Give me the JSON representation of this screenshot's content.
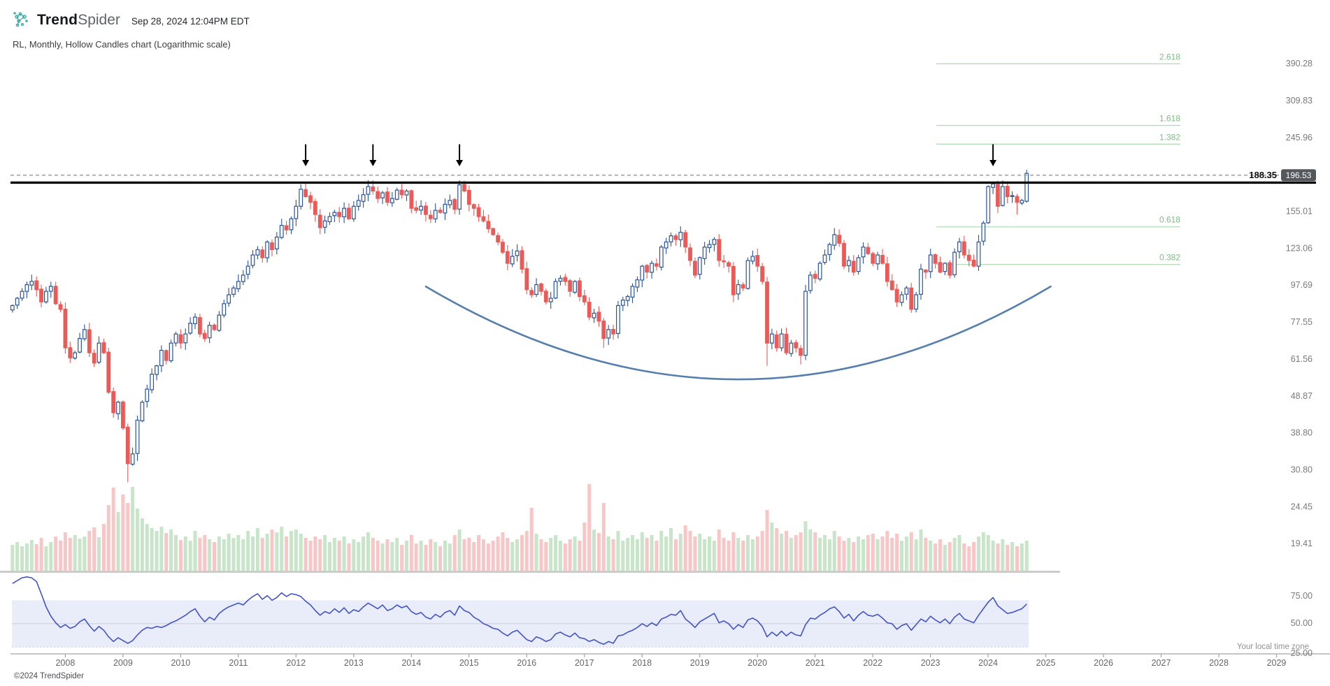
{
  "header": {
    "logo_bold": "Trend",
    "logo_light": "Spider",
    "timestamp": "Sep 28, 2024 12:04PM EDT",
    "subtitle": "RL, Monthly, Hollow Candles chart (Logarithmic scale)"
  },
  "footer": {
    "copyright": "©2024 TrendSpider",
    "timezone_note": "Your local time zone"
  },
  "colors": {
    "candle_up": "#2a549b",
    "candle_down": "#ea5a57",
    "vol_up": "#c8e4c9",
    "vol_down": "#f7c7c8",
    "fib_line": "#b5dbb7",
    "fib_text": "#7cbd81",
    "curve": "#567fae",
    "rsi_line": "#4353c8",
    "rsi_band": "#e9ecf9",
    "rsi_band_border": "#c6cce9",
    "rsi_mid": "#cfd2dc",
    "dashed_line": "#a9a9a9",
    "black_line": "#0a0a0a",
    "badge_bg": "#54575b",
    "badge_text": "#ffffff",
    "axis_text": "#7a7a7a",
    "year_text": "#666666",
    "vol_baseline": "#cccccc",
    "axis_line": "#a3a3a3",
    "price_label_text": "#111111"
  },
  "chart_data": {
    "type": "candlestick",
    "symbol": "RL",
    "timeframe": "Monthly",
    "style": "Hollow Candles",
    "scale": "Logarithmic",
    "start_month": "2007-02",
    "first_open": 84,
    "closes": [
      86,
      90,
      94,
      98,
      100,
      95,
      88,
      94,
      97,
      87,
      84,
      66,
      62,
      64,
      70,
      74,
      64,
      60,
      68,
      64,
      50,
      44,
      47,
      40,
      32,
      34,
      42,
      47,
      51,
      56,
      59,
      65,
      61,
      68,
      72,
      68,
      72,
      77,
      80,
      72,
      70,
      76,
      74,
      81,
      87,
      92,
      96,
      100,
      104,
      110,
      118,
      122,
      116,
      128,
      122,
      132,
      142,
      138,
      148,
      160,
      178,
      170,
      164,
      152,
      140,
      146,
      150,
      154,
      150,
      158,
      148,
      160,
      166,
      172,
      181,
      176,
      168,
      174,
      164,
      168,
      177,
      172,
      176,
      158,
      156,
      160,
      152,
      148,
      156,
      154,
      162,
      166,
      157,
      183,
      176,
      162,
      158,
      150,
      146,
      139,
      134,
      128,
      120,
      112,
      117,
      121,
      108,
      95,
      92,
      98,
      94,
      88,
      90,
      100,
      102,
      100,
      94,
      100,
      91,
      88,
      80,
      82,
      78,
      70,
      74,
      72,
      86,
      89,
      91,
      97,
      101,
      110,
      106,
      112,
      110,
      124,
      128,
      133,
      130,
      136,
      124,
      114,
      104,
      116,
      124,
      126,
      130,
      114,
      113,
      110,
      92,
      98,
      96,
      114,
      117,
      110,
      100,
      68,
      72,
      66,
      72,
      64,
      68,
      66,
      63,
      94,
      104,
      102,
      112,
      118,
      126,
      134,
      127,
      110,
      114,
      106,
      116,
      124,
      119,
      112,
      118,
      112,
      100,
      95,
      88,
      92,
      96,
      84,
      92,
      108,
      106,
      118,
      112,
      106,
      112,
      104,
      120,
      128,
      118,
      114,
      110,
      128,
      144,
      181,
      184,
      160,
      181,
      170,
      171,
      164,
      166,
      196.53
    ],
    "volumes": [
      38,
      42,
      36,
      40,
      45,
      39,
      48,
      36,
      42,
      50,
      44,
      56,
      48,
      52,
      47,
      50,
      58,
      63,
      49,
      68,
      95,
      120,
      85,
      110,
      98,
      121,
      90,
      76,
      68,
      62,
      58,
      64,
      55,
      60,
      52,
      45,
      50,
      44,
      58,
      48,
      52,
      46,
      42,
      50,
      46,
      54,
      48,
      52,
      46,
      58,
      50,
      62,
      48,
      54,
      60,
      56,
      64,
      50,
      58,
      60,
      54,
      48,
      44,
      50,
      46,
      52,
      42,
      48,
      44,
      50,
      40,
      46,
      42,
      50,
      56,
      48,
      44,
      40,
      46,
      42,
      48,
      38,
      44,
      52,
      40,
      44,
      38,
      46,
      42,
      36,
      44,
      40,
      52,
      60,
      46,
      48,
      42,
      52,
      46,
      40,
      44,
      50,
      56,
      48,
      42,
      46,
      52,
      58,
      91,
      54,
      46,
      42,
      48,
      52,
      44,
      40,
      46,
      50,
      44,
      70,
      125,
      60,
      55,
      98,
      50,
      46,
      58,
      44,
      48,
      52,
      46,
      56,
      48,
      52,
      44,
      58,
      50,
      62,
      46,
      54,
      66,
      58,
      50,
      54,
      46,
      50,
      44,
      60,
      48,
      44,
      56,
      48,
      44,
      52,
      46,
      50,
      58,
      88,
      70,
      62,
      54,
      58,
      48,
      52,
      56,
      72,
      60,
      56,
      48,
      52,
      46,
      58,
      50,
      44,
      48,
      42,
      50,
      46,
      52,
      54,
      46,
      50,
      58,
      48,
      54,
      44,
      50,
      56,
      46,
      60,
      48,
      44,
      40,
      46,
      38,
      42,
      48,
      52,
      40,
      36,
      42,
      50,
      56,
      52,
      44,
      40,
      46,
      38,
      42,
      36,
      40,
      44
    ],
    "volume_scale": "relative",
    "rsi": [
      93,
      96,
      99,
      100,
      99,
      95,
      82,
      68,
      58,
      51,
      46,
      49,
      45,
      47,
      52,
      55,
      48,
      42,
      47,
      43,
      36,
      31,
      35,
      32,
      29,
      32,
      38,
      43,
      46,
      45,
      47,
      46,
      48,
      51,
      53,
      56,
      59,
      63,
      66,
      58,
      52,
      57,
      54,
      61,
      65,
      68,
      70,
      72,
      70,
      75,
      79,
      82,
      76,
      80,
      75,
      78,
      83,
      79,
      82,
      81,
      79,
      74,
      70,
      64,
      59,
      63,
      61,
      66,
      62,
      67,
      61,
      65,
      63,
      68,
      72,
      69,
      66,
      70,
      64,
      66,
      70,
      67,
      69,
      63,
      60,
      62,
      57,
      55,
      60,
      57,
      62,
      64,
      59,
      69,
      64,
      62,
      57,
      54,
      50,
      48,
      45,
      44,
      40,
      37,
      41,
      43,
      38,
      33,
      31,
      36,
      34,
      31,
      33,
      39,
      41,
      38,
      36,
      40,
      35,
      34,
      31,
      33,
      30,
      28,
      31,
      29,
      37,
      38,
      41,
      43,
      46,
      50,
      47,
      51,
      48,
      55,
      57,
      60,
      59,
      64,
      55,
      51,
      46,
      52,
      55,
      58,
      61,
      51,
      53,
      50,
      44,
      49,
      46,
      54,
      56,
      53,
      47,
      36,
      41,
      37,
      42,
      37,
      41,
      38,
      37,
      49,
      56,
      55,
      59,
      62,
      66,
      68,
      63,
      56,
      60,
      53,
      59,
      63,
      59,
      58,
      60,
      56,
      51,
      50,
      44,
      48,
      50,
      43,
      49,
      55,
      52,
      58,
      54,
      51,
      55,
      50,
      57,
      61,
      55,
      53,
      51,
      59,
      66,
      73,
      78,
      69,
      65,
      61,
      62,
      64,
      66,
      71
    ],
    "wick_overrides": {
      "2009-02": {
        "low": 28.5
      },
      "2012-02": {
        "high": 183.5
      },
      "2013-04": {
        "high": 188.3
      },
      "2014-11": {
        "high": 188.3
      },
      "2017-05": {
        "low": 66
      },
      "2020-03": {
        "low": 59
      },
      "2020-10": {
        "low": 59.5
      },
      "2024-07": {
        "low": 152
      },
      "2024-09": {
        "high": 201
      }
    },
    "resistance_line_price": "188.35",
    "last_price": "196.53",
    "fib_levels": [
      {
        "label": "2.618",
        "price": 390.1
      },
      {
        "label": "1.618",
        "price": 265.3
      },
      {
        "label": "1.382",
        "price": 236.0
      },
      {
        "label": "0.618",
        "price": 140.7
      },
      {
        "label": "0.382",
        "price": 111.25
      }
    ],
    "price_axis_ticks": [
      "390.28",
      "309.83",
      "245.96",
      "155.01",
      "123.06",
      "97.69",
      "77.55",
      "61.56",
      "48.87",
      "38.80",
      "30.80",
      "24.45",
      "19.41"
    ],
    "rsi_axis_ticks": [
      "75.00",
      "50.00",
      "25.00"
    ],
    "years": [
      "2008",
      "2009",
      "2010",
      "2011",
      "2012",
      "2013",
      "2014",
      "2015",
      "2016",
      "2017",
      "2018",
      "2019",
      "2020",
      "2021",
      "2022",
      "2023",
      "2024",
      "2025",
      "2026",
      "2027",
      "2028",
      "2029"
    ],
    "arrows_at": [
      "2012-03",
      "2013-05",
      "2014-11",
      "2024-02"
    ],
    "cup_curve": {
      "start": {
        "month": "2014-04",
        "price": 96.9
      },
      "bottom": {
        "month": "2019-08",
        "price": 54.2
      },
      "end": {
        "month": "2025-02",
        "price": 96.9
      }
    }
  }
}
